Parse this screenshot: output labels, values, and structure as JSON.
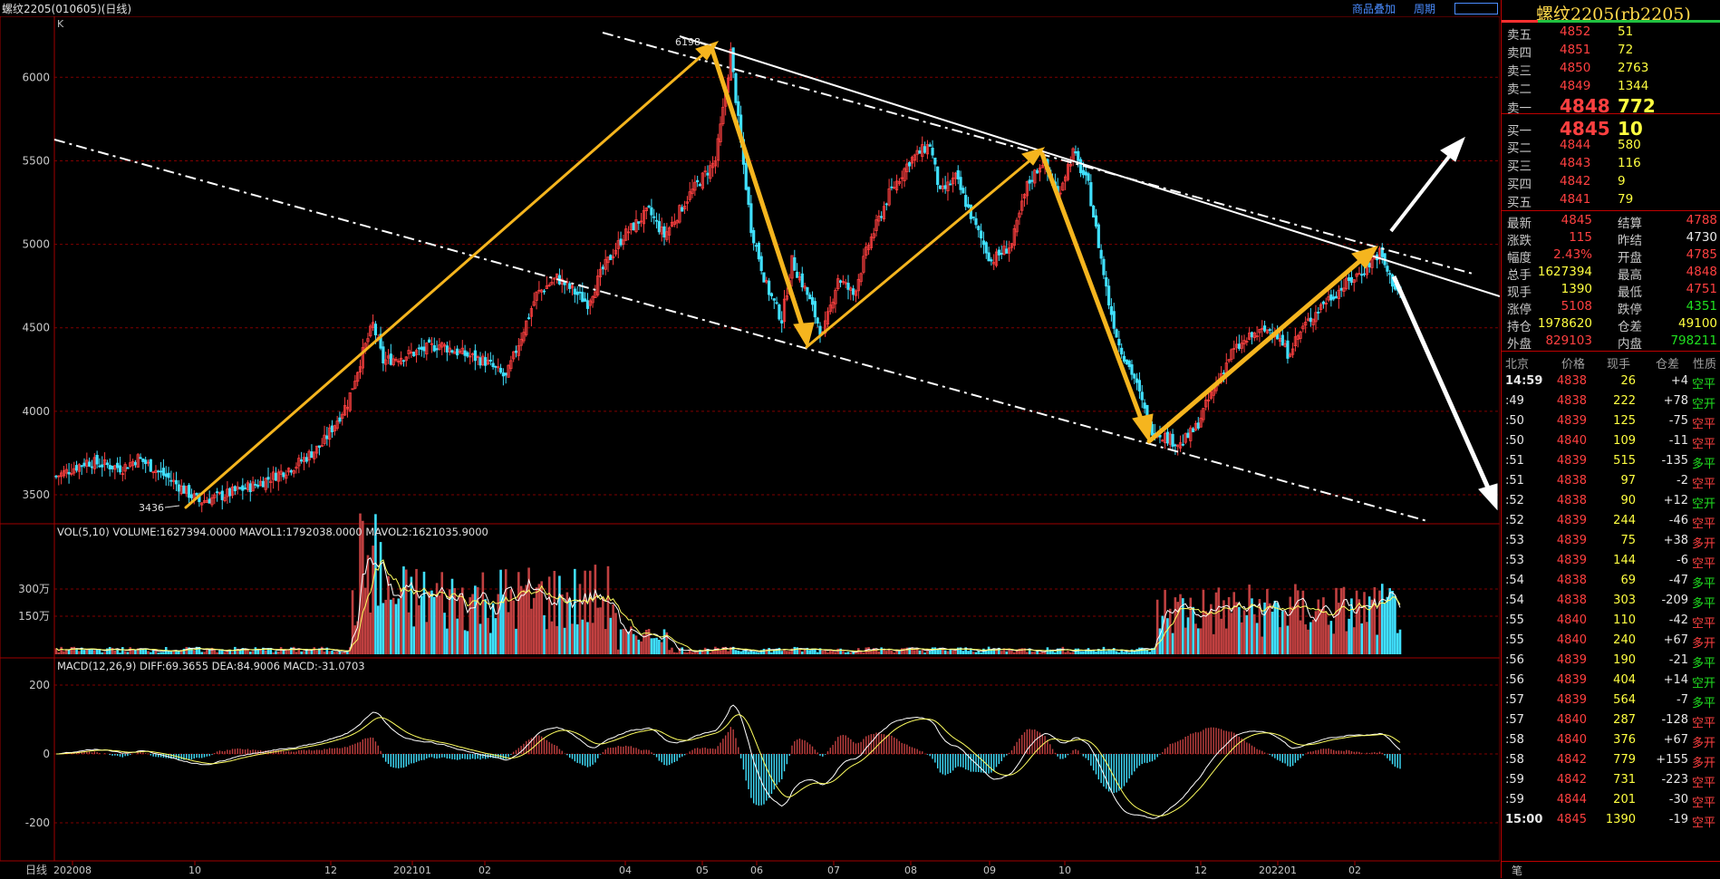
{
  "window": {
    "title": "螺纹2205(010605)(日线)",
    "toolbar": [
      "商品叠加",
      "周期"
    ],
    "k_label": "K"
  },
  "colors": {
    "up": "#ff4040",
    "down": "#40e0ff",
    "accent": "#ffb020",
    "grid": "#800000"
  },
  "chart_data": [
    {
      "type": "candlestick",
      "title": "",
      "y_ticks": [
        6000,
        5500,
        5000,
        4500,
        4000,
        3500
      ],
      "ylim": [
        3370,
        6300
      ],
      "x_ticks": [
        "202008",
        "10",
        "12",
        "202101",
        "02",
        "04",
        "05",
        "06",
        "07",
        "08",
        "09",
        "10",
        "12",
        "202201",
        "02"
      ],
      "annotations": [
        {
          "text": "6198",
          "value": 6198
        },
        {
          "text": "3436",
          "value": 3436
        }
      ],
      "close_trace": [
        [
          0,
          3610
        ],
        [
          12,
          3700
        ],
        [
          26,
          3660
        ],
        [
          32,
          3720
        ],
        [
          44,
          3600
        ],
        [
          56,
          3460
        ],
        [
          66,
          3500
        ],
        [
          78,
          3560
        ],
        [
          94,
          3680
        ],
        [
          104,
          3800
        ],
        [
          114,
          4050
        ],
        [
          120,
          4350
        ],
        [
          124,
          4520
        ],
        [
          128,
          4300
        ],
        [
          140,
          4350
        ],
        [
          150,
          4400
        ],
        [
          158,
          4350
        ],
        [
          168,
          4300
        ],
        [
          176,
          4200
        ],
        [
          182,
          4450
        ],
        [
          188,
          4700
        ],
        [
          196,
          4800
        ],
        [
          208,
          4650
        ],
        [
          214,
          4850
        ],
        [
          222,
          5050
        ],
        [
          232,
          5200
        ],
        [
          238,
          5050
        ],
        [
          248,
          5300
        ],
        [
          258,
          5500
        ],
        [
          262,
          5900
        ],
        [
          264,
          6150
        ],
        [
          268,
          5600
        ],
        [
          272,
          5100
        ],
        [
          278,
          4750
        ],
        [
          284,
          4550
        ],
        [
          288,
          4900
        ],
        [
          294,
          4700
        ],
        [
          300,
          4450
        ],
        [
          306,
          4800
        ],
        [
          312,
          4700
        ],
        [
          318,
          5000
        ],
        [
          326,
          5300
        ],
        [
          334,
          5500
        ],
        [
          342,
          5600
        ],
        [
          346,
          5300
        ],
        [
          352,
          5400
        ],
        [
          360,
          5100
        ],
        [
          366,
          4900
        ],
        [
          374,
          5000
        ],
        [
          380,
          5350
        ],
        [
          386,
          5500
        ],
        [
          392,
          5300
        ],
        [
          398,
          5550
        ],
        [
          404,
          5350
        ],
        [
          408,
          5000
        ],
        [
          412,
          4650
        ],
        [
          416,
          4400
        ],
        [
          422,
          4200
        ],
        [
          428,
          3900
        ],
        [
          434,
          3850
        ],
        [
          440,
          3800
        ],
        [
          446,
          3900
        ],
        [
          452,
          4100
        ],
        [
          460,
          4350
        ],
        [
          468,
          4450
        ],
        [
          476,
          4500
        ],
        [
          482,
          4350
        ],
        [
          488,
          4500
        ],
        [
          496,
          4650
        ],
        [
          504,
          4750
        ],
        [
          512,
          4850
        ],
        [
          518,
          4950
        ],
        [
          522,
          4800
        ],
        [
          526,
          4700
        ]
      ]
    },
    {
      "type": "bar",
      "title": "VOL(5,10) VOLUME:1627394.0000 MAVOL1:1792038.0000 MAVOL2:1621035.9000",
      "series": [
        {
          "name": "VOLUME",
          "value": 1627394.0
        },
        {
          "name": "MAVOL1",
          "value": 1792038.0
        },
        {
          "name": "MAVOL2",
          "value": 1621035.9
        }
      ],
      "y_ticks": [
        "300万",
        "150万"
      ]
    },
    {
      "type": "bar",
      "title": "MACD(12,26,9) DIFF:69.3655 DEA:84.9006 MACD:-31.0703",
      "series": [
        {
          "name": "DIFF",
          "value": 69.3655
        },
        {
          "name": "DEA",
          "value": 84.9006
        },
        {
          "name": "MACD",
          "value": -31.0703
        }
      ],
      "y_ticks": [
        200,
        0,
        -200
      ]
    }
  ],
  "panel": {
    "name": "螺纹2205(rb2205)",
    "asks": [
      {
        "label": "卖五",
        "price": "4852",
        "vol": "51"
      },
      {
        "label": "卖四",
        "price": "4851",
        "vol": "72"
      },
      {
        "label": "卖三",
        "price": "4850",
        "vol": "2763"
      },
      {
        "label": "卖二",
        "price": "4849",
        "vol": "1344"
      }
    ],
    "ask1": {
      "label": "卖一",
      "price": "4848",
      "vol": "772"
    },
    "bid1": {
      "label": "买一",
      "price": "4845",
      "vol": "10"
    },
    "bids": [
      {
        "label": "买二",
        "price": "4844",
        "vol": "580"
      },
      {
        "label": "买三",
        "price": "4843",
        "vol": "116"
      },
      {
        "label": "买四",
        "price": "4842",
        "vol": "9"
      },
      {
        "label": "买五",
        "price": "4841",
        "vol": "79"
      }
    ],
    "stats": [
      {
        "l1": "最新",
        "v1": "4845",
        "c1": "red",
        "l2": "结算",
        "v2": "4788",
        "c2": "red"
      },
      {
        "l1": "涨跌",
        "v1": "115",
        "c1": "red",
        "l2": "昨结",
        "v2": "4730",
        "c2": "wht"
      },
      {
        "l1": "幅度",
        "v1": "2.43%",
        "c1": "red",
        "l2": "开盘",
        "v2": "4785",
        "c2": "red"
      },
      {
        "l1": "总手",
        "v1": "1627394",
        "c1": "yel",
        "l2": "最高",
        "v2": "4848",
        "c2": "red"
      },
      {
        "l1": "现手",
        "v1": "1390",
        "c1": "yel",
        "l2": "最低",
        "v2": "4751",
        "c2": "red"
      },
      {
        "l1": "涨停",
        "v1": "5108",
        "c1": "red",
        "l2": "跌停",
        "v2": "4351",
        "c2": "grn"
      },
      {
        "l1": "持仓",
        "v1": "1978620",
        "c1": "yel",
        "l2": "仓差",
        "v2": "49100",
        "c2": "yel"
      },
      {
        "l1": "外盘",
        "v1": "829103",
        "c1": "red",
        "l2": "内盘",
        "v2": "798211",
        "c2": "grn"
      }
    ],
    "trade_header": [
      "北京",
      "价格",
      "现手",
      "仓差",
      "性质"
    ],
    "trades": [
      {
        "t": "14:59",
        "p": "4838",
        "v": "26",
        "d": "+4",
        "n": "空平",
        "nc": "grn"
      },
      {
        "t": ":49",
        "p": "4838",
        "v": "222",
        "d": "+78",
        "n": "空开",
        "nc": "grn"
      },
      {
        "t": ":50",
        "p": "4839",
        "v": "125",
        "d": "-75",
        "n": "空平",
        "nc": "red"
      },
      {
        "t": ":50",
        "p": "4840",
        "v": "109",
        "d": "-11",
        "n": "空平",
        "nc": "red"
      },
      {
        "t": ":51",
        "p": "4839",
        "v": "515",
        "d": "-135",
        "n": "多平",
        "nc": "grn"
      },
      {
        "t": ":51",
        "p": "4838",
        "v": "97",
        "d": "-2",
        "n": "空平",
        "nc": "red"
      },
      {
        "t": ":52",
        "p": "4838",
        "v": "90",
        "d": "+12",
        "n": "空开",
        "nc": "grn"
      },
      {
        "t": ":52",
        "p": "4839",
        "v": "244",
        "d": "-46",
        "n": "空平",
        "nc": "red"
      },
      {
        "t": ":53",
        "p": "4839",
        "v": "75",
        "d": "+38",
        "n": "多开",
        "nc": "red"
      },
      {
        "t": ":53",
        "p": "4839",
        "v": "144",
        "d": "-6",
        "n": "空平",
        "nc": "red"
      },
      {
        "t": ":54",
        "p": "4838",
        "v": "69",
        "d": "-47",
        "n": "多平",
        "nc": "grn"
      },
      {
        "t": ":54",
        "p": "4838",
        "v": "303",
        "d": "-209",
        "n": "多平",
        "nc": "grn"
      },
      {
        "t": ":55",
        "p": "4840",
        "v": "110",
        "d": "-42",
        "n": "空平",
        "nc": "red"
      },
      {
        "t": ":55",
        "p": "4840",
        "v": "240",
        "d": "+67",
        "n": "多开",
        "nc": "red"
      },
      {
        "t": ":56",
        "p": "4839",
        "v": "190",
        "d": "-21",
        "n": "多平",
        "nc": "grn"
      },
      {
        "t": ":56",
        "p": "4839",
        "v": "404",
        "d": "+14",
        "n": "空开",
        "nc": "grn"
      },
      {
        "t": ":57",
        "p": "4839",
        "v": "564",
        "d": "-7",
        "n": "多平",
        "nc": "grn"
      },
      {
        "t": ":57",
        "p": "4840",
        "v": "287",
        "d": "-128",
        "n": "空平",
        "nc": "red"
      },
      {
        "t": ":58",
        "p": "4840",
        "v": "376",
        "d": "+67",
        "n": "多开",
        "nc": "red"
      },
      {
        "t": ":58",
        "p": "4842",
        "v": "779",
        "d": "+155",
        "n": "多开",
        "nc": "red"
      },
      {
        "t": ":59",
        "p": "4842",
        "v": "731",
        "d": "-223",
        "n": "空平",
        "nc": "red"
      },
      {
        "t": ":59",
        "p": "4844",
        "v": "201",
        "d": "-30",
        "n": "空平",
        "nc": "red"
      },
      {
        "t": "15:00",
        "p": "4845",
        "v": "1390",
        "d": "-19",
        "n": "空平",
        "nc": "red"
      }
    ],
    "bottom_tab": "笔",
    "left_tab": "日线"
  }
}
